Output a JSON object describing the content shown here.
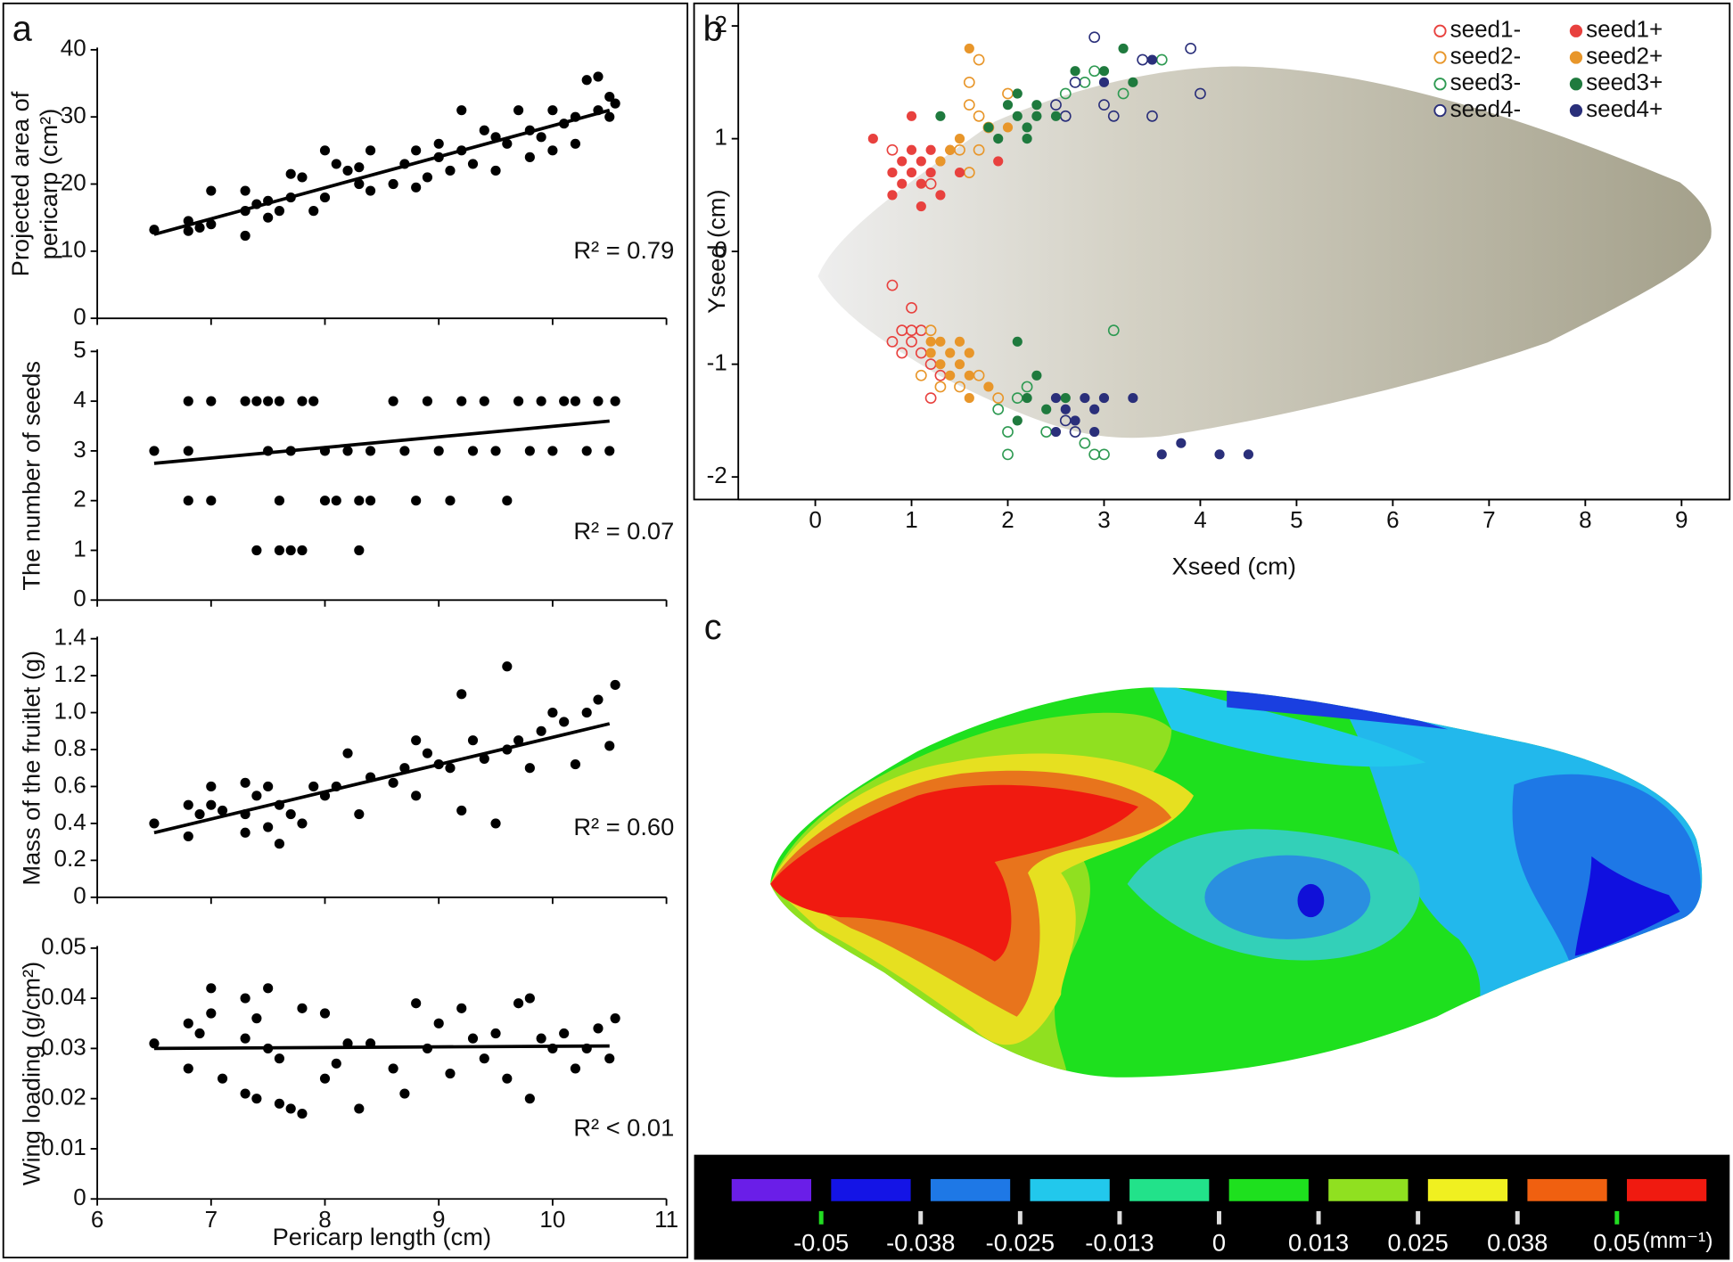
{
  "chart_data": [
    {
      "type": "scatter",
      "panel": "a",
      "ylabel": [
        "Projected area of",
        "pericarp (cm²)"
      ],
      "annotation": "R² = 0.79",
      "color": "#000000",
      "x": [
        6.5,
        6.8,
        6.8,
        6.9,
        7.0,
        7.0,
        7.3,
        7.3,
        7.3,
        7.4,
        7.5,
        7.5,
        7.6,
        7.7,
        7.7,
        7.8,
        7.9,
        8.0,
        8.0,
        8.1,
        8.2,
        8.3,
        8.3,
        8.4,
        8.4,
        8.6,
        8.7,
        8.8,
        8.8,
        8.9,
        9.0,
        9.0,
        9.1,
        9.2,
        9.2,
        9.3,
        9.4,
        9.5,
        9.5,
        9.6,
        9.7,
        9.8,
        9.8,
        9.9,
        10.0,
        10.0,
        10.1,
        10.2,
        10.2,
        10.3,
        10.4,
        10.4,
        10.5,
        10.5,
        10.55
      ],
      "values": [
        13.2,
        14.5,
        13,
        13.5,
        14,
        19,
        12.3,
        16,
        19,
        17,
        15,
        17.5,
        16,
        18,
        21.5,
        21,
        16,
        25,
        18,
        23,
        22,
        20,
        22.5,
        25,
        19,
        20,
        23,
        19.5,
        25,
        21,
        24,
        26,
        22,
        31,
        25,
        23,
        28,
        22,
        27,
        26,
        31,
        28,
        24,
        27,
        31,
        25,
        29,
        30,
        26,
        35.5,
        36,
        31,
        33,
        30,
        32
      ],
      "trendline": {
        "x": [
          6.5,
          10.5
        ],
        "values": [
          12.5,
          31
        ]
      },
      "xlim": [
        6,
        11
      ],
      "xticks": [
        6,
        7,
        8,
        9,
        10,
        11
      ],
      "ylim": [
        0,
        40
      ],
      "yticks": [
        0,
        10,
        20,
        30,
        40
      ]
    },
    {
      "type": "scatter",
      "ylabel": "The number of seeds",
      "annotation": "R² = 0.07",
      "color": "#000000",
      "x": [
        6.5,
        6.8,
        6.8,
        6.8,
        7.0,
        7.0,
        7.3,
        7.4,
        7.4,
        7.5,
        7.5,
        7.6,
        7.6,
        7.6,
        7.7,
        7.7,
        7.8,
        7.8,
        7.9,
        8.0,
        8.0,
        8.1,
        8.2,
        8.3,
        8.3,
        8.4,
        8.4,
        8.6,
        8.7,
        8.8,
        8.9,
        9.0,
        9.1,
        9.2,
        9.3,
        9.4,
        9.5,
        9.6,
        9.7,
        9.8,
        9.9,
        10.0,
        10.1,
        10.2,
        10.3,
        10.4,
        10.5,
        10.55
      ],
      "values": [
        3,
        4,
        3,
        2,
        4,
        2,
        4,
        4,
        1,
        4,
        3,
        4,
        2,
        1,
        1,
        3,
        1,
        4,
        4,
        3,
        2,
        2,
        3,
        2,
        1,
        3,
        2,
        4,
        3,
        2,
        4,
        3,
        2,
        4,
        3,
        4,
        3,
        2,
        4,
        3,
        4,
        3,
        4,
        4,
        3,
        4,
        3,
        4
      ],
      "trendline": {
        "x": [
          6.5,
          10.5
        ],
        "values": [
          2.75,
          3.6
        ]
      },
      "xlim": [
        6,
        11
      ],
      "xticks": [
        6,
        7,
        8,
        9,
        10,
        11
      ],
      "ylim": [
        0,
        5
      ],
      "yticks": [
        0,
        1,
        2,
        3,
        4,
        5
      ]
    },
    {
      "type": "scatter",
      "ylabel": "Mass of the fruitlet (g)",
      "annotation": "R² = 0.60",
      "color": "#000000",
      "x": [
        6.5,
        6.8,
        6.8,
        6.9,
        7.0,
        7.0,
        7.1,
        7.3,
        7.3,
        7.3,
        7.4,
        7.5,
        7.5,
        7.6,
        7.6,
        7.7,
        7.8,
        7.9,
        8.0,
        8.1,
        8.2,
        8.3,
        8.4,
        8.6,
        8.7,
        8.8,
        8.8,
        8.9,
        9.0,
        9.1,
        9.2,
        9.2,
        9.3,
        9.4,
        9.5,
        9.6,
        9.6,
        9.7,
        9.8,
        9.9,
        10.0,
        10.1,
        10.2,
        10.3,
        10.4,
        10.5,
        10.55
      ],
      "values": [
        0.4,
        0.33,
        0.5,
        0.45,
        0.6,
        0.5,
        0.47,
        0.35,
        0.62,
        0.45,
        0.55,
        0.6,
        0.38,
        0.29,
        0.5,
        0.45,
        0.4,
        0.6,
        0.55,
        0.6,
        0.78,
        0.45,
        0.65,
        0.62,
        0.7,
        0.55,
        0.85,
        0.78,
        0.72,
        0.7,
        1.1,
        0.47,
        0.85,
        0.75,
        0.4,
        0.8,
        1.25,
        0.85,
        0.7,
        0.9,
        1.0,
        0.95,
        0.72,
        1.0,
        1.07,
        0.82,
        1.15
      ],
      "trendline": {
        "x": [
          6.5,
          10.5
        ],
        "values": [
          0.35,
          0.94
        ]
      },
      "xlim": [
        6,
        11
      ],
      "xticks": [
        6,
        7,
        8,
        9,
        10,
        11
      ],
      "ylim": [
        0,
        1.4
      ],
      "yticks": [
        0,
        0.2,
        0.4,
        0.6,
        0.8,
        {
          "value": 1,
          "label": "1.0"
        },
        1.2,
        1.4
      ]
    },
    {
      "type": "scatter",
      "ylabel": "Wing loading (g/cm²)",
      "annotation": "R² < 0.01",
      "xlabel": "Pericarp length (cm)",
      "color": "#000000",
      "x": [
        6.5,
        6.8,
        6.8,
        6.9,
        7.0,
        7.0,
        7.1,
        7.3,
        7.3,
        7.3,
        7.4,
        7.4,
        7.5,
        7.5,
        7.6,
        7.6,
        7.7,
        7.8,
        7.8,
        8.0,
        8.0,
        8.1,
        8.2,
        8.3,
        8.4,
        8.6,
        8.7,
        8.8,
        8.9,
        9.0,
        9.1,
        9.2,
        9.3,
        9.4,
        9.5,
        9.6,
        9.7,
        9.8,
        9.8,
        9.9,
        10.0,
        10.1,
        10.2,
        10.3,
        10.4,
        10.5,
        10.55
      ],
      "values": [
        0.031,
        0.026,
        0.035,
        0.033,
        0.042,
        0.037,
        0.024,
        0.021,
        0.04,
        0.032,
        0.02,
        0.036,
        0.042,
        0.03,
        0.028,
        0.019,
        0.018,
        0.017,
        0.038,
        0.037,
        0.024,
        0.027,
        0.031,
        0.018,
        0.031,
        0.026,
        0.021,
        0.039,
        0.03,
        0.035,
        0.025,
        0.038,
        0.032,
        0.028,
        0.033,
        0.024,
        0.039,
        0.02,
        0.04,
        0.032,
        0.03,
        0.033,
        0.026,
        0.03,
        0.034,
        0.028,
        0.036
      ],
      "trendline": {
        "x": [
          6.5,
          10.5
        ],
        "values": [
          0.03,
          0.0305
        ]
      },
      "xlim": [
        6,
        11
      ],
      "xticks": [
        6,
        7,
        8,
        9,
        10,
        11
      ],
      "ylim": [
        0,
        0.05
      ],
      "yticks": [
        0,
        0.01,
        0.02,
        0.03,
        0.04,
        0.05
      ]
    },
    {
      "type": "scatter",
      "panel": "b",
      "xlabel": "Xseed (cm)",
      "ylabel": "Yseed (cm)",
      "legend": "top-right",
      "xlim": [
        -0.8,
        9.5
      ],
      "xticks": [
        0,
        1,
        2,
        3,
        4,
        5,
        6,
        7,
        8,
        9
      ],
      "ylim": [
        -2.2,
        2.2
      ],
      "yticks": [
        -2,
        -1,
        0,
        1,
        2
      ],
      "series": [
        {
          "name": "seed1-",
          "color": "#e8413e",
          "marker": "open",
          "x": [
            0.8,
            0.8,
            0.9,
            0.9,
            1.0,
            1.0,
            1.0,
            1.1,
            1.1,
            1.2,
            1.2,
            1.3,
            0.8,
            1.2
          ],
          "values": [
            -0.3,
            -0.8,
            -0.7,
            -0.9,
            -0.5,
            -0.8,
            -0.7,
            -0.7,
            -0.9,
            -1.0,
            -1.3,
            -1.1,
            0.9,
            0.6
          ]
        },
        {
          "name": "seed2-",
          "color": "#e8962a",
          "marker": "open",
          "x": [
            1.1,
            1.2,
            1.3,
            1.5,
            1.7,
            1.9,
            1.6,
            1.6,
            1.7,
            1.7,
            1.7,
            1.6,
            1.5,
            1.8,
            2.0
          ],
          "values": [
            -1.1,
            -0.7,
            -1.2,
            -1.2,
            -1.1,
            -1.3,
            1.5,
            1.3,
            1.2,
            1.7,
            0.9,
            0.7,
            0.9,
            1.1,
            1.4
          ]
        },
        {
          "name": "seed3-",
          "color": "#2e9a52",
          "marker": "open",
          "x": [
            1.9,
            2.0,
            2.0,
            2.1,
            2.2,
            2.4,
            2.8,
            2.9,
            3.0,
            3.1,
            2.8,
            2.9,
            3.2,
            3.6,
            2.6
          ],
          "values": [
            -1.4,
            -1.6,
            -1.8,
            -1.3,
            -1.2,
            -1.6,
            -1.7,
            -1.8,
            -1.8,
            -0.7,
            1.5,
            1.6,
            1.4,
            1.7,
            1.4
          ]
        },
        {
          "name": "seed4-",
          "color": "#2a2f7a",
          "marker": "open",
          "x": [
            2.5,
            2.6,
            2.7,
            2.9,
            3.0,
            3.1,
            3.5,
            3.9,
            4.0,
            3.4,
            2.6,
            2.7
          ],
          "values": [
            1.3,
            1.2,
            1.5,
            1.9,
            1.3,
            1.2,
            1.2,
            1.8,
            1.4,
            1.7,
            -1.5,
            -1.6
          ]
        },
        {
          "name": "seed1+",
          "color": "#e8413e",
          "marker": "filled",
          "x": [
            0.6,
            0.8,
            0.8,
            0.9,
            0.9,
            1.0,
            1.0,
            1.0,
            1.1,
            1.1,
            1.1,
            1.2,
            1.2,
            1.3,
            1.3,
            1.4,
            1.5,
            1.9
          ],
          "values": [
            1.0,
            0.5,
            0.7,
            0.6,
            0.8,
            0.9,
            0.7,
            1.2,
            0.4,
            0.6,
            0.8,
            0.9,
            0.7,
            0.8,
            0.5,
            0.9,
            0.7,
            0.8
          ]
        },
        {
          "name": "seed2+",
          "color": "#e8962a",
          "marker": "filled",
          "x": [
            1.2,
            1.2,
            1.3,
            1.3,
            1.4,
            1.4,
            1.5,
            1.5,
            1.6,
            1.6,
            1.6,
            1.8,
            1.3,
            1.4,
            1.6,
            1.5,
            2.0
          ],
          "values": [
            -0.8,
            -0.9,
            -1.0,
            -0.8,
            -0.9,
            -1.1,
            -0.8,
            -1.0,
            -0.9,
            -1.1,
            -1.3,
            -1.2,
            0.8,
            0.9,
            1.8,
            1.0,
            1.1
          ]
        },
        {
          "name": "seed3+",
          "color": "#1f7a3e",
          "marker": "filled",
          "x": [
            1.8,
            1.9,
            2.0,
            2.1,
            2.1,
            2.2,
            2.2,
            2.3,
            2.3,
            2.5,
            2.7,
            3.0,
            3.2,
            3.3,
            2.1,
            2.2,
            2.3,
            2.1,
            2.4,
            2.6,
            1.3
          ],
          "values": [
            1.1,
            1.0,
            1.3,
            1.2,
            1.4,
            1.0,
            1.1,
            1.2,
            1.3,
            1.2,
            1.6,
            1.6,
            1.8,
            1.5,
            -0.8,
            -1.3,
            -1.1,
            -1.5,
            -1.4,
            -1.3,
            1.2
          ]
        },
        {
          "name": "seed4+",
          "color": "#2a2f7a",
          "marker": "filled",
          "x": [
            2.5,
            2.5,
            2.6,
            2.7,
            2.8,
            2.9,
            2.9,
            3.0,
            3.3,
            3.6,
            3.8,
            4.2,
            4.5,
            3.5,
            3.0
          ],
          "values": [
            -1.3,
            -1.6,
            -1.4,
            -1.5,
            -1.3,
            -1.4,
            -1.6,
            -1.3,
            -1.3,
            -1.8,
            -1.7,
            -1.8,
            -1.8,
            1.7,
            1.5
          ]
        }
      ]
    },
    {
      "type": "colorbar",
      "panel": "c",
      "unit": "(mm⁻¹)",
      "colors": [
        "#6a1ee8",
        "#1414e6",
        "#1e78e6",
        "#22c8ec",
        "#22e28a",
        "#1ee01e",
        "#90e020",
        "#f0f020",
        "#f06010",
        "#f01a10"
      ],
      "ticks": [
        -0.05,
        -0.038,
        -0.025,
        -0.013,
        0,
        0.013,
        0.025,
        0.038,
        0.05
      ]
    }
  ]
}
